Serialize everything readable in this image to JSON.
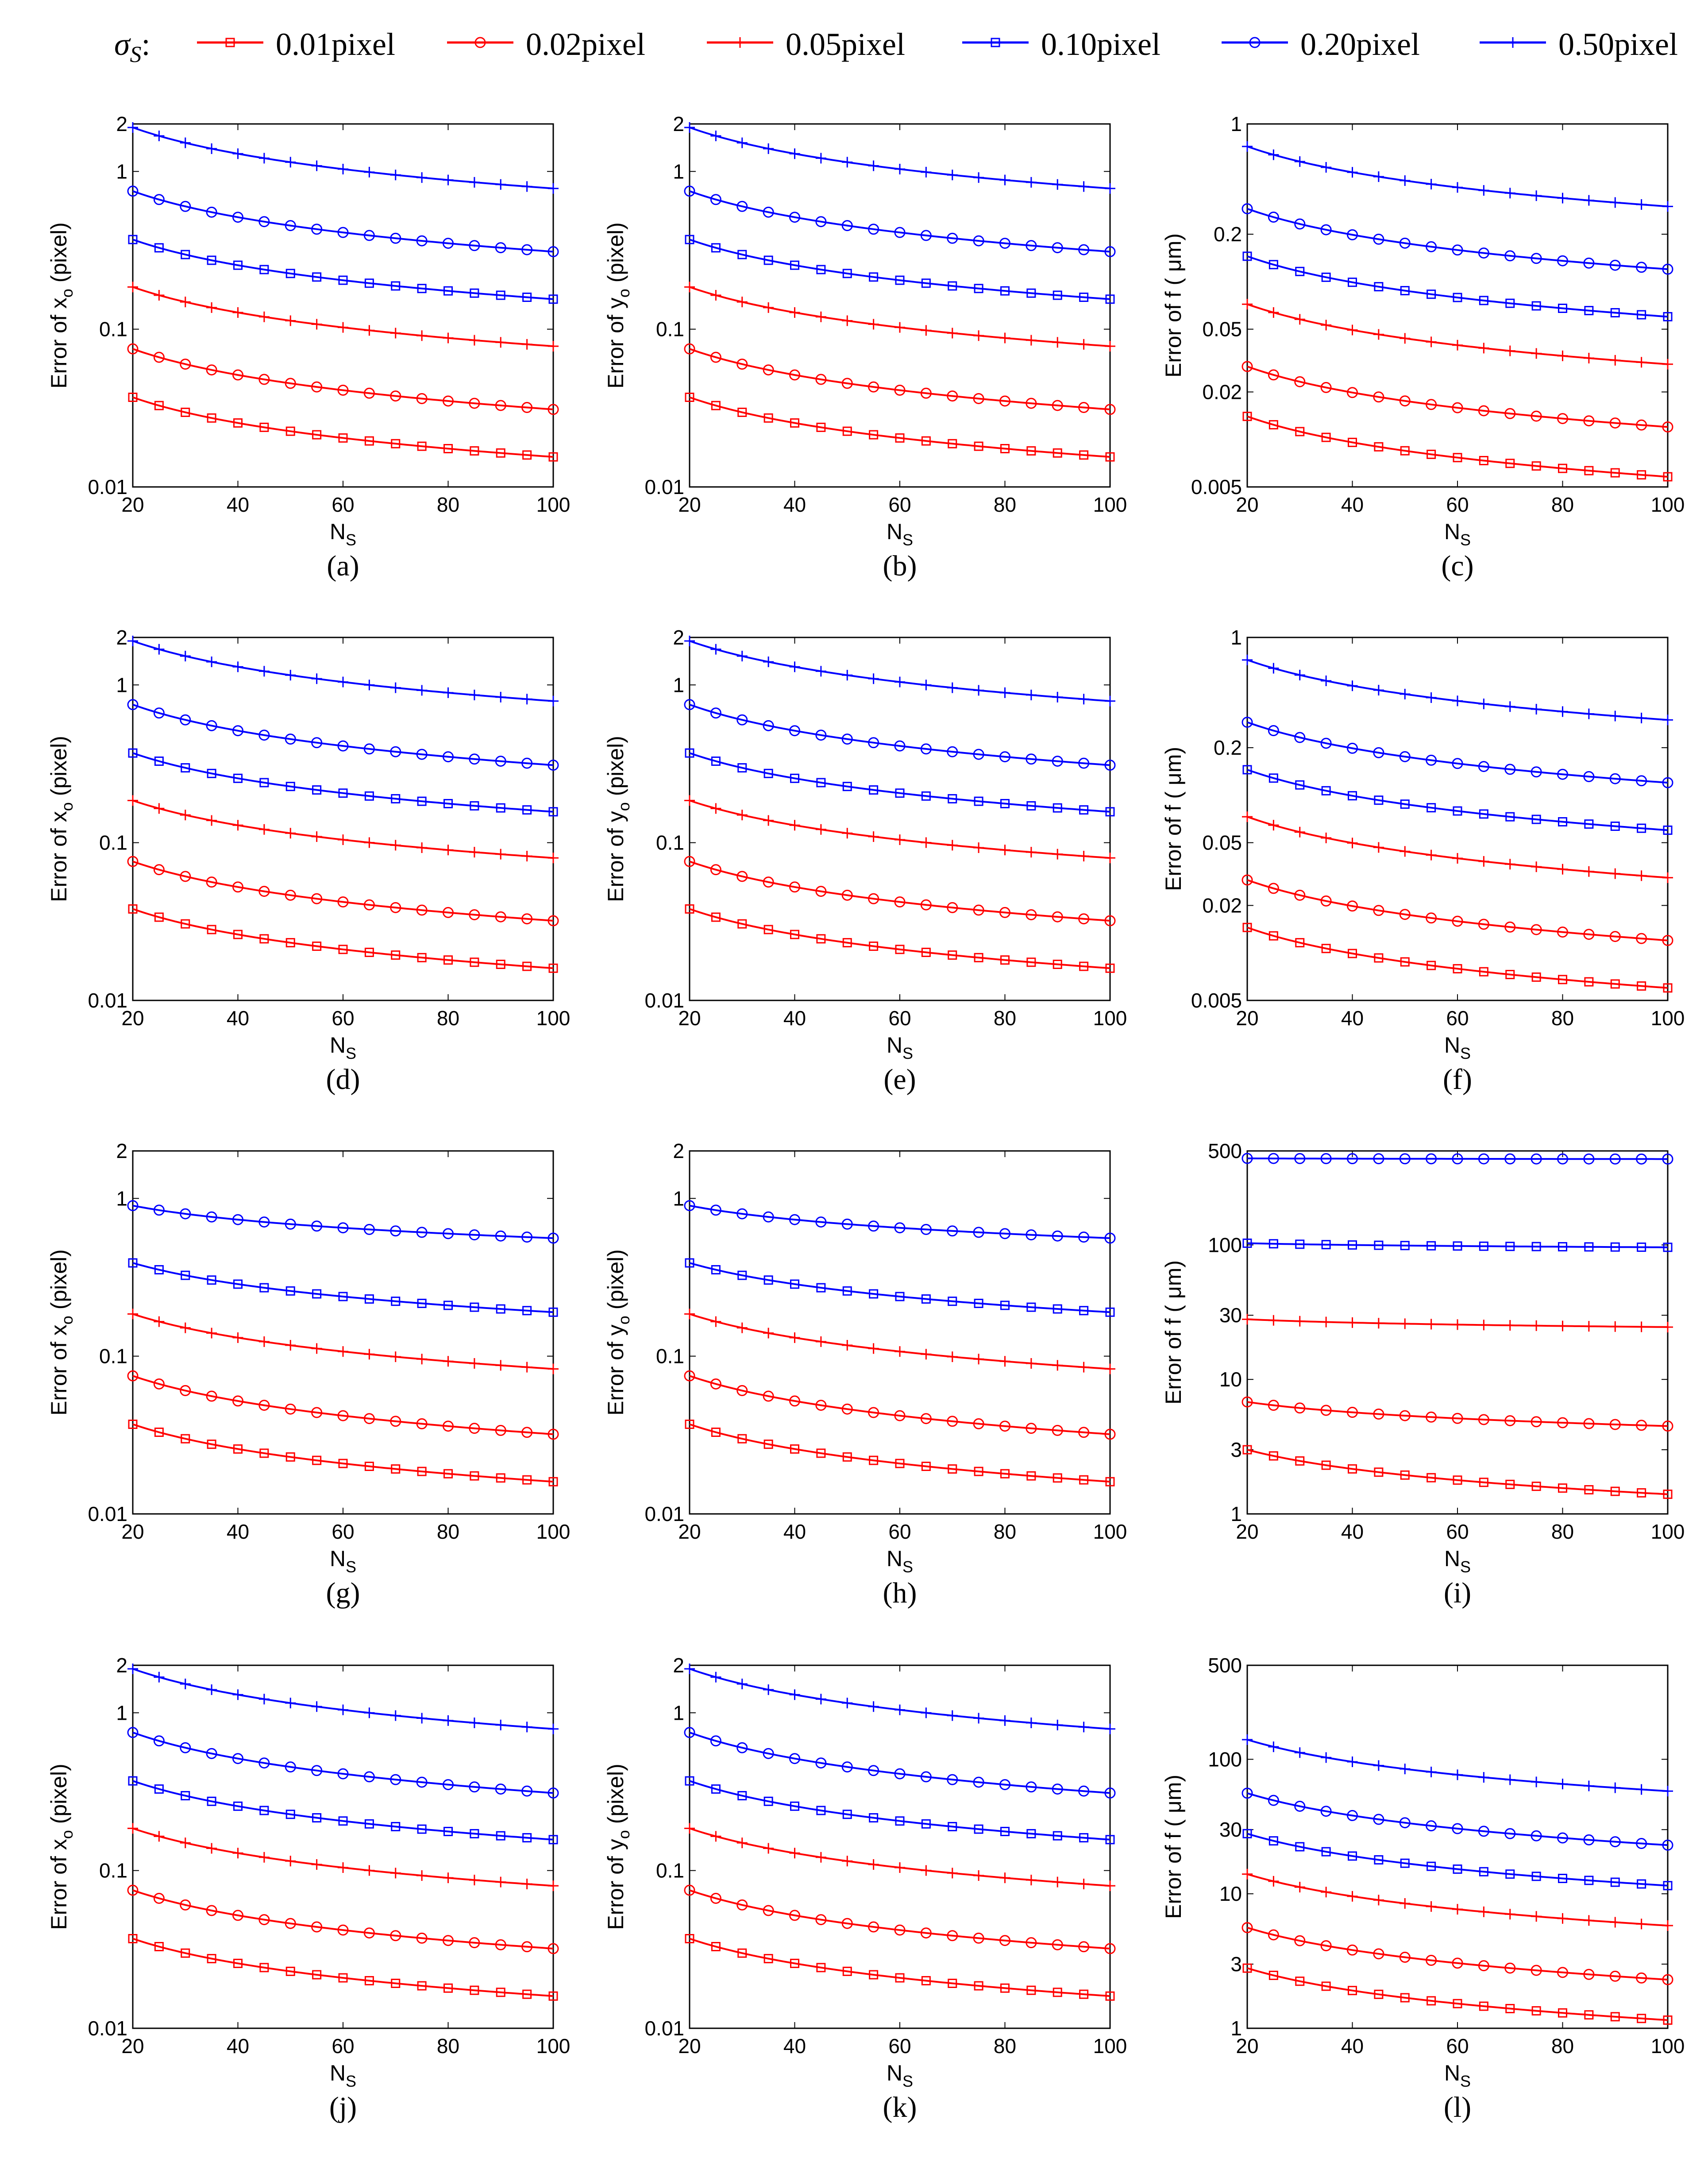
{
  "legend": {
    "symbol_base": "σ",
    "symbol_sub": "S",
    "symbol_suffix": ":",
    "entries": [
      {
        "label": "0.01pixel",
        "color": "#ff0000",
        "marker": "square"
      },
      {
        "label": "0.02pixel",
        "color": "#ff0000",
        "marker": "circle"
      },
      {
        "label": "0.05pixel",
        "color": "#ff0000",
        "marker": "plus"
      },
      {
        "label": "0.10pixel",
        "color": "#0000ff",
        "marker": "square"
      },
      {
        "label": "0.20pixel",
        "color": "#0000ff",
        "marker": "circle"
      },
      {
        "label": "0.50pixel",
        "color": "#0000ff",
        "marker": "plus"
      }
    ]
  },
  "chart_data": [
    {
      "id": "a",
      "type": "line",
      "caption": "(a)",
      "yscale": "log",
      "ylabel": "Error of x_o (pixel)",
      "xlabel": "N_S",
      "xlim": [
        20,
        100
      ],
      "ylim": [
        0.01,
        2
      ],
      "xticks": [
        20,
        40,
        60,
        80,
        100
      ],
      "yticks": [
        0.01,
        0.1,
        1,
        2
      ],
      "x_step": 5,
      "series": [
        {
          "name": "0.01pixel",
          "start": 0.037,
          "end": 0.0155
        },
        {
          "name": "0.02pixel",
          "start": 0.075,
          "end": 0.031
        },
        {
          "name": "0.05pixel",
          "start": 0.185,
          "end": 0.078
        },
        {
          "name": "0.10pixel",
          "start": 0.37,
          "end": 0.155
        },
        {
          "name": "0.20pixel",
          "start": 0.75,
          "end": 0.31
        },
        {
          "name": "0.50pixel",
          "start": 1.9,
          "end": 0.78
        }
      ]
    },
    {
      "id": "b",
      "type": "line",
      "caption": "(b)",
      "yscale": "log",
      "ylabel": "Error of y_o (pixel)",
      "xlabel": "N_S",
      "xlim": [
        20,
        100
      ],
      "ylim": [
        0.01,
        2
      ],
      "xticks": [
        20,
        40,
        60,
        80,
        100
      ],
      "yticks": [
        0.01,
        0.1,
        1,
        2
      ],
      "x_step": 5,
      "series": [
        {
          "name": "0.01pixel",
          "start": 0.037,
          "end": 0.0155
        },
        {
          "name": "0.02pixel",
          "start": 0.075,
          "end": 0.031
        },
        {
          "name": "0.05pixel",
          "start": 0.185,
          "end": 0.078
        },
        {
          "name": "0.10pixel",
          "start": 0.37,
          "end": 0.155
        },
        {
          "name": "0.20pixel",
          "start": 0.75,
          "end": 0.31
        },
        {
          "name": "0.50pixel",
          "start": 1.9,
          "end": 0.78
        }
      ]
    },
    {
      "id": "c",
      "type": "line",
      "caption": "(c)",
      "yscale": "log",
      "ylabel": "Error of f ( μm)",
      "xlabel": "N_S",
      "xlim": [
        20,
        100
      ],
      "ylim": [
        0.005,
        1
      ],
      "xticks": [
        20,
        40,
        60,
        80,
        100
      ],
      "yticks": [
        0.005,
        0.02,
        0.05,
        0.2,
        1
      ],
      "x_step": 5,
      "series": [
        {
          "name": "0.01pixel",
          "start": 0.014,
          "end": 0.0058
        },
        {
          "name": "0.02pixel",
          "start": 0.029,
          "end": 0.012
        },
        {
          "name": "0.05pixel",
          "start": 0.072,
          "end": 0.03
        },
        {
          "name": "0.10pixel",
          "start": 0.145,
          "end": 0.06
        },
        {
          "name": "0.20pixel",
          "start": 0.29,
          "end": 0.12
        },
        {
          "name": "0.50pixel",
          "start": 0.72,
          "end": 0.3
        }
      ]
    },
    {
      "id": "d",
      "type": "line",
      "caption": "(d)",
      "yscale": "log",
      "ylabel": "Error of x_o (pixel)",
      "xlabel": "N_S",
      "xlim": [
        20,
        100
      ],
      "ylim": [
        0.01,
        2
      ],
      "xticks": [
        20,
        40,
        60,
        80,
        100
      ],
      "yticks": [
        0.01,
        0.1,
        1,
        2
      ],
      "x_step": 5,
      "series": [
        {
          "name": "0.01pixel",
          "start": 0.038,
          "end": 0.016
        },
        {
          "name": "0.02pixel",
          "start": 0.076,
          "end": 0.032
        },
        {
          "name": "0.05pixel",
          "start": 0.185,
          "end": 0.08
        },
        {
          "name": "0.10pixel",
          "start": 0.37,
          "end": 0.157
        },
        {
          "name": "0.20pixel",
          "start": 0.75,
          "end": 0.31
        },
        {
          "name": "0.50pixel",
          "start": 1.9,
          "end": 0.79
        }
      ]
    },
    {
      "id": "e",
      "type": "line",
      "caption": "(e)",
      "yscale": "log",
      "ylabel": "Error of y_o (pixel)",
      "xlabel": "N_S",
      "xlim": [
        20,
        100
      ],
      "ylim": [
        0.01,
        2
      ],
      "xticks": [
        20,
        40,
        60,
        80,
        100
      ],
      "yticks": [
        0.01,
        0.1,
        1,
        2
      ],
      "x_step": 5,
      "series": [
        {
          "name": "0.01pixel",
          "start": 0.038,
          "end": 0.016
        },
        {
          "name": "0.02pixel",
          "start": 0.076,
          "end": 0.032
        },
        {
          "name": "0.05pixel",
          "start": 0.185,
          "end": 0.08
        },
        {
          "name": "0.10pixel",
          "start": 0.37,
          "end": 0.157
        },
        {
          "name": "0.20pixel",
          "start": 0.75,
          "end": 0.31
        },
        {
          "name": "0.50pixel",
          "start": 1.9,
          "end": 0.79
        }
      ]
    },
    {
      "id": "f",
      "type": "line",
      "caption": "(f)",
      "yscale": "log",
      "ylabel": "Error of f ( μm)",
      "xlabel": "N_S",
      "xlim": [
        20,
        100
      ],
      "ylim": [
        0.005,
        1
      ],
      "xticks": [
        20,
        40,
        60,
        80,
        100
      ],
      "yticks": [
        0.005,
        0.02,
        0.05,
        0.2,
        1
      ],
      "x_step": 5,
      "series": [
        {
          "name": "0.01pixel",
          "start": 0.0145,
          "end": 0.006
        },
        {
          "name": "0.02pixel",
          "start": 0.029,
          "end": 0.012
        },
        {
          "name": "0.05pixel",
          "start": 0.073,
          "end": 0.03
        },
        {
          "name": "0.10pixel",
          "start": 0.145,
          "end": 0.06
        },
        {
          "name": "0.20pixel",
          "start": 0.29,
          "end": 0.12
        },
        {
          "name": "0.50pixel",
          "start": 0.72,
          "end": 0.3
        }
      ]
    },
    {
      "id": "g",
      "type": "line",
      "caption": "(g)",
      "yscale": "log",
      "ylabel": "Error of x_o (pixel)",
      "xlabel": "N_S",
      "xlim": [
        20,
        100
      ],
      "ylim": [
        0.01,
        2
      ],
      "xticks": [
        20,
        40,
        60,
        80,
        100
      ],
      "yticks": [
        0.01,
        0.1,
        1,
        2
      ],
      "x_step": 5,
      "series": [
        {
          "name": "0.01pixel",
          "start": 0.037,
          "end": 0.016
        },
        {
          "name": "0.02pixel",
          "start": 0.075,
          "end": 0.032
        },
        {
          "name": "0.05pixel",
          "start": 0.185,
          "end": 0.083
        },
        {
          "name": "0.10pixel",
          "start": 0.39,
          "end": 0.19
        },
        {
          "name": "0.20pixel",
          "start": 0.9,
          "end": 0.56
        }
      ]
    },
    {
      "id": "h",
      "type": "line",
      "caption": "(h)",
      "yscale": "log",
      "ylabel": "Error of y_o (pixel)",
      "xlabel": "N_S",
      "xlim": [
        20,
        100
      ],
      "ylim": [
        0.01,
        2
      ],
      "xticks": [
        20,
        40,
        60,
        80,
        100
      ],
      "yticks": [
        0.01,
        0.1,
        1,
        2
      ],
      "x_step": 5,
      "series": [
        {
          "name": "0.01pixel",
          "start": 0.037,
          "end": 0.016
        },
        {
          "name": "0.02pixel",
          "start": 0.075,
          "end": 0.032
        },
        {
          "name": "0.05pixel",
          "start": 0.185,
          "end": 0.083
        },
        {
          "name": "0.10pixel",
          "start": 0.39,
          "end": 0.19
        },
        {
          "name": "0.20pixel",
          "start": 0.9,
          "end": 0.56
        }
      ]
    },
    {
      "id": "i",
      "type": "line",
      "caption": "(i)",
      "yscale": "log",
      "ylabel": "Error of f ( μm)",
      "xlabel": "N_S",
      "xlim": [
        20,
        100
      ],
      "ylim": [
        1,
        500
      ],
      "xticks": [
        20,
        40,
        60,
        80,
        100
      ],
      "yticks": [
        1,
        3,
        10,
        30,
        100,
        500
      ],
      "x_step": 5,
      "series": [
        {
          "name": "0.01pixel",
          "start": 3.0,
          "end": 1.4
        },
        {
          "name": "0.02pixel",
          "start": 6.8,
          "end": 4.5
        },
        {
          "name": "0.05pixel",
          "start": 28,
          "end": 24.5
        },
        {
          "name": "0.10pixel",
          "start": 103,
          "end": 96
        },
        {
          "name": "0.20pixel",
          "start": 440,
          "end": 435
        }
      ]
    },
    {
      "id": "j",
      "type": "line",
      "caption": "(j)",
      "yscale": "log",
      "ylabel": "Error of x_o (pixel)",
      "xlabel": "N_S",
      "xlim": [
        20,
        100
      ],
      "ylim": [
        0.01,
        2
      ],
      "xticks": [
        20,
        40,
        60,
        80,
        100
      ],
      "yticks": [
        0.01,
        0.1,
        1,
        2
      ],
      "x_step": 5,
      "series": [
        {
          "name": "0.01pixel",
          "start": 0.037,
          "end": 0.016
        },
        {
          "name": "0.02pixel",
          "start": 0.075,
          "end": 0.032
        },
        {
          "name": "0.05pixel",
          "start": 0.185,
          "end": 0.08
        },
        {
          "name": "0.10pixel",
          "start": 0.37,
          "end": 0.157
        },
        {
          "name": "0.20pixel",
          "start": 0.75,
          "end": 0.31
        },
        {
          "name": "0.50pixel",
          "start": 1.9,
          "end": 0.79
        }
      ]
    },
    {
      "id": "k",
      "type": "line",
      "caption": "(k)",
      "yscale": "log",
      "ylabel": "Error of y_o (pixel)",
      "xlabel": "N_S",
      "xlim": [
        20,
        100
      ],
      "ylim": [
        0.01,
        2
      ],
      "xticks": [
        20,
        40,
        60,
        80,
        100
      ],
      "yticks": [
        0.01,
        0.1,
        1,
        2
      ],
      "x_step": 5,
      "series": [
        {
          "name": "0.01pixel",
          "start": 0.037,
          "end": 0.016
        },
        {
          "name": "0.02pixel",
          "start": 0.075,
          "end": 0.032
        },
        {
          "name": "0.05pixel",
          "start": 0.185,
          "end": 0.08
        },
        {
          "name": "0.10pixel",
          "start": 0.37,
          "end": 0.157
        },
        {
          "name": "0.20pixel",
          "start": 0.75,
          "end": 0.31
        },
        {
          "name": "0.50pixel",
          "start": 1.9,
          "end": 0.79
        }
      ]
    },
    {
      "id": "l",
      "type": "line",
      "caption": "(l)",
      "yscale": "log",
      "ylabel": "Error of f ( μm)",
      "xlabel": "N_S",
      "xlim": [
        20,
        100
      ],
      "ylim": [
        1,
        500
      ],
      "xticks": [
        20,
        40,
        60,
        80,
        100
      ],
      "yticks": [
        1,
        3,
        10,
        30,
        100,
        500
      ],
      "x_step": 5,
      "series": [
        {
          "name": "0.01pixel",
          "start": 2.8,
          "end": 1.15
        },
        {
          "name": "0.02pixel",
          "start": 5.6,
          "end": 2.3
        },
        {
          "name": "0.05pixel",
          "start": 14,
          "end": 5.8
        },
        {
          "name": "0.10pixel",
          "start": 28,
          "end": 11.5
        },
        {
          "name": "0.20pixel",
          "start": 56,
          "end": 23
        },
        {
          "name": "0.50pixel",
          "start": 140,
          "end": 58
        }
      ]
    }
  ]
}
